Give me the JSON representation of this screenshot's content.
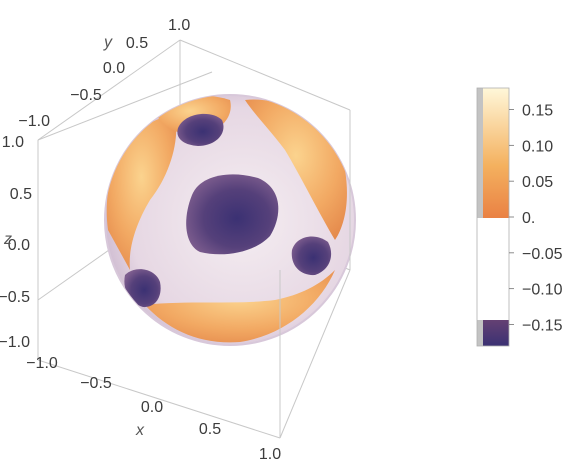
{
  "chart_data": {
    "type": "3d-density-sphere",
    "axes": {
      "x": {
        "label": "x",
        "range": [
          -1.0,
          1.0
        ],
        "ticks": [
          "−1.0",
          "−0.5",
          "0.0",
          "0.5",
          "1.0"
        ]
      },
      "y": {
        "label": "y",
        "range": [
          -1.0,
          1.0
        ],
        "ticks": [
          "−1.0",
          "−0.5",
          "0.0",
          "0.5",
          "1.0"
        ]
      },
      "z": {
        "label": "z",
        "range": [
          -1.0,
          1.0
        ],
        "ticks": [
          "−1.0",
          "−0.5",
          "0.0",
          "0.5",
          "1.0"
        ]
      }
    },
    "colorbar": {
      "range": [
        -0.18,
        0.18
      ],
      "tick_values": [
        0.15,
        0.1,
        0.05,
        0.0,
        -0.05,
        -0.1,
        -0.15
      ],
      "tick_labels": [
        "0.15",
        "0.10",
        "0.05",
        "0.",
        "−0.05",
        "−0.10",
        "−0.15"
      ],
      "colors": [
        "#fff6d6",
        "#f8c56f",
        "#e98a48",
        "#ffffff",
        "#d8664f",
        "#8e4d70",
        "#3c3273"
      ]
    },
    "grid": false,
    "legend_placement": "right",
    "description_of_values": "Sphere surface colored by scalar value: orange regions positive, purple regions negative, near-zero values transparent/white."
  }
}
